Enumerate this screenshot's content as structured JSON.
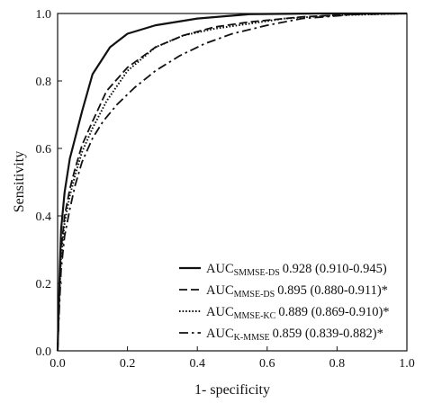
{
  "chart_data": {
    "type": "line",
    "title": "",
    "xlabel": "1- specificity",
    "ylabel": "Sensitivity",
    "xlim": [
      0.0,
      1.0
    ],
    "ylim": [
      0.0,
      1.0
    ],
    "xticks": [
      "0.0",
      "0.2",
      "0.4",
      "0.6",
      "0.8",
      "1.0"
    ],
    "yticks": [
      "0.0",
      "0.2",
      "0.4",
      "0.6",
      "0.8",
      "1.0"
    ],
    "grid": false,
    "legend_position": "bottom-right",
    "series": [
      {
        "name": "SMMSE-DS",
        "legend_main": "AUC",
        "legend_sub": "SMMSE-DS",
        "legend_value": "0.928 (0.910-0.945)",
        "line_style": "solid",
        "x": [
          0.0,
          0.005,
          0.01,
          0.02,
          0.035,
          0.05,
          0.07,
          0.1,
          0.15,
          0.2,
          0.28,
          0.4,
          0.55,
          0.75,
          1.0
        ],
        "y": [
          0.0,
          0.2,
          0.36,
          0.47,
          0.57,
          0.63,
          0.71,
          0.82,
          0.9,
          0.94,
          0.965,
          0.985,
          0.998,
          1.0,
          1.0
        ]
      },
      {
        "name": "MMSE-DS",
        "legend_main": "AUC",
        "legend_sub": "MMSE-DS",
        "legend_value": "0.895 (0.880-0.911)*",
        "line_style": "dashed",
        "x": [
          0.0,
          0.005,
          0.01,
          0.02,
          0.035,
          0.05,
          0.07,
          0.1,
          0.14,
          0.2,
          0.28,
          0.36,
          0.45,
          0.55,
          0.7,
          0.85,
          1.0
        ],
        "y": [
          0.0,
          0.18,
          0.3,
          0.4,
          0.48,
          0.54,
          0.61,
          0.68,
          0.77,
          0.84,
          0.9,
          0.935,
          0.96,
          0.975,
          0.99,
          0.998,
          1.0
        ]
      },
      {
        "name": "MMSE-KC",
        "legend_main": "AUC",
        "legend_sub": "MMSE-KC",
        "legend_value": "0.889 (0.869-0.910)*",
        "line_style": "dotted",
        "x": [
          0.0,
          0.005,
          0.01,
          0.02,
          0.035,
          0.05,
          0.07,
          0.1,
          0.14,
          0.2,
          0.28,
          0.36,
          0.45,
          0.55,
          0.65,
          0.8,
          1.0
        ],
        "y": [
          0.0,
          0.16,
          0.28,
          0.38,
          0.46,
          0.52,
          0.59,
          0.66,
          0.74,
          0.83,
          0.9,
          0.935,
          0.955,
          0.97,
          0.985,
          0.995,
          1.0
        ]
      },
      {
        "name": "K-MMSE",
        "legend_main": "AUC",
        "legend_sub": "K-MMSE",
        "legend_value": "0.859 (0.839-0.882)*",
        "line_style": "dashdot",
        "x": [
          0.0,
          0.005,
          0.01,
          0.02,
          0.035,
          0.05,
          0.07,
          0.1,
          0.13,
          0.17,
          0.22,
          0.28,
          0.35,
          0.42,
          0.5,
          0.6,
          0.7,
          0.85,
          1.0
        ],
        "y": [
          0.0,
          0.13,
          0.24,
          0.34,
          0.42,
          0.49,
          0.56,
          0.63,
          0.68,
          0.73,
          0.78,
          0.83,
          0.875,
          0.91,
          0.94,
          0.965,
          0.985,
          0.997,
          1.0
        ]
      }
    ]
  }
}
